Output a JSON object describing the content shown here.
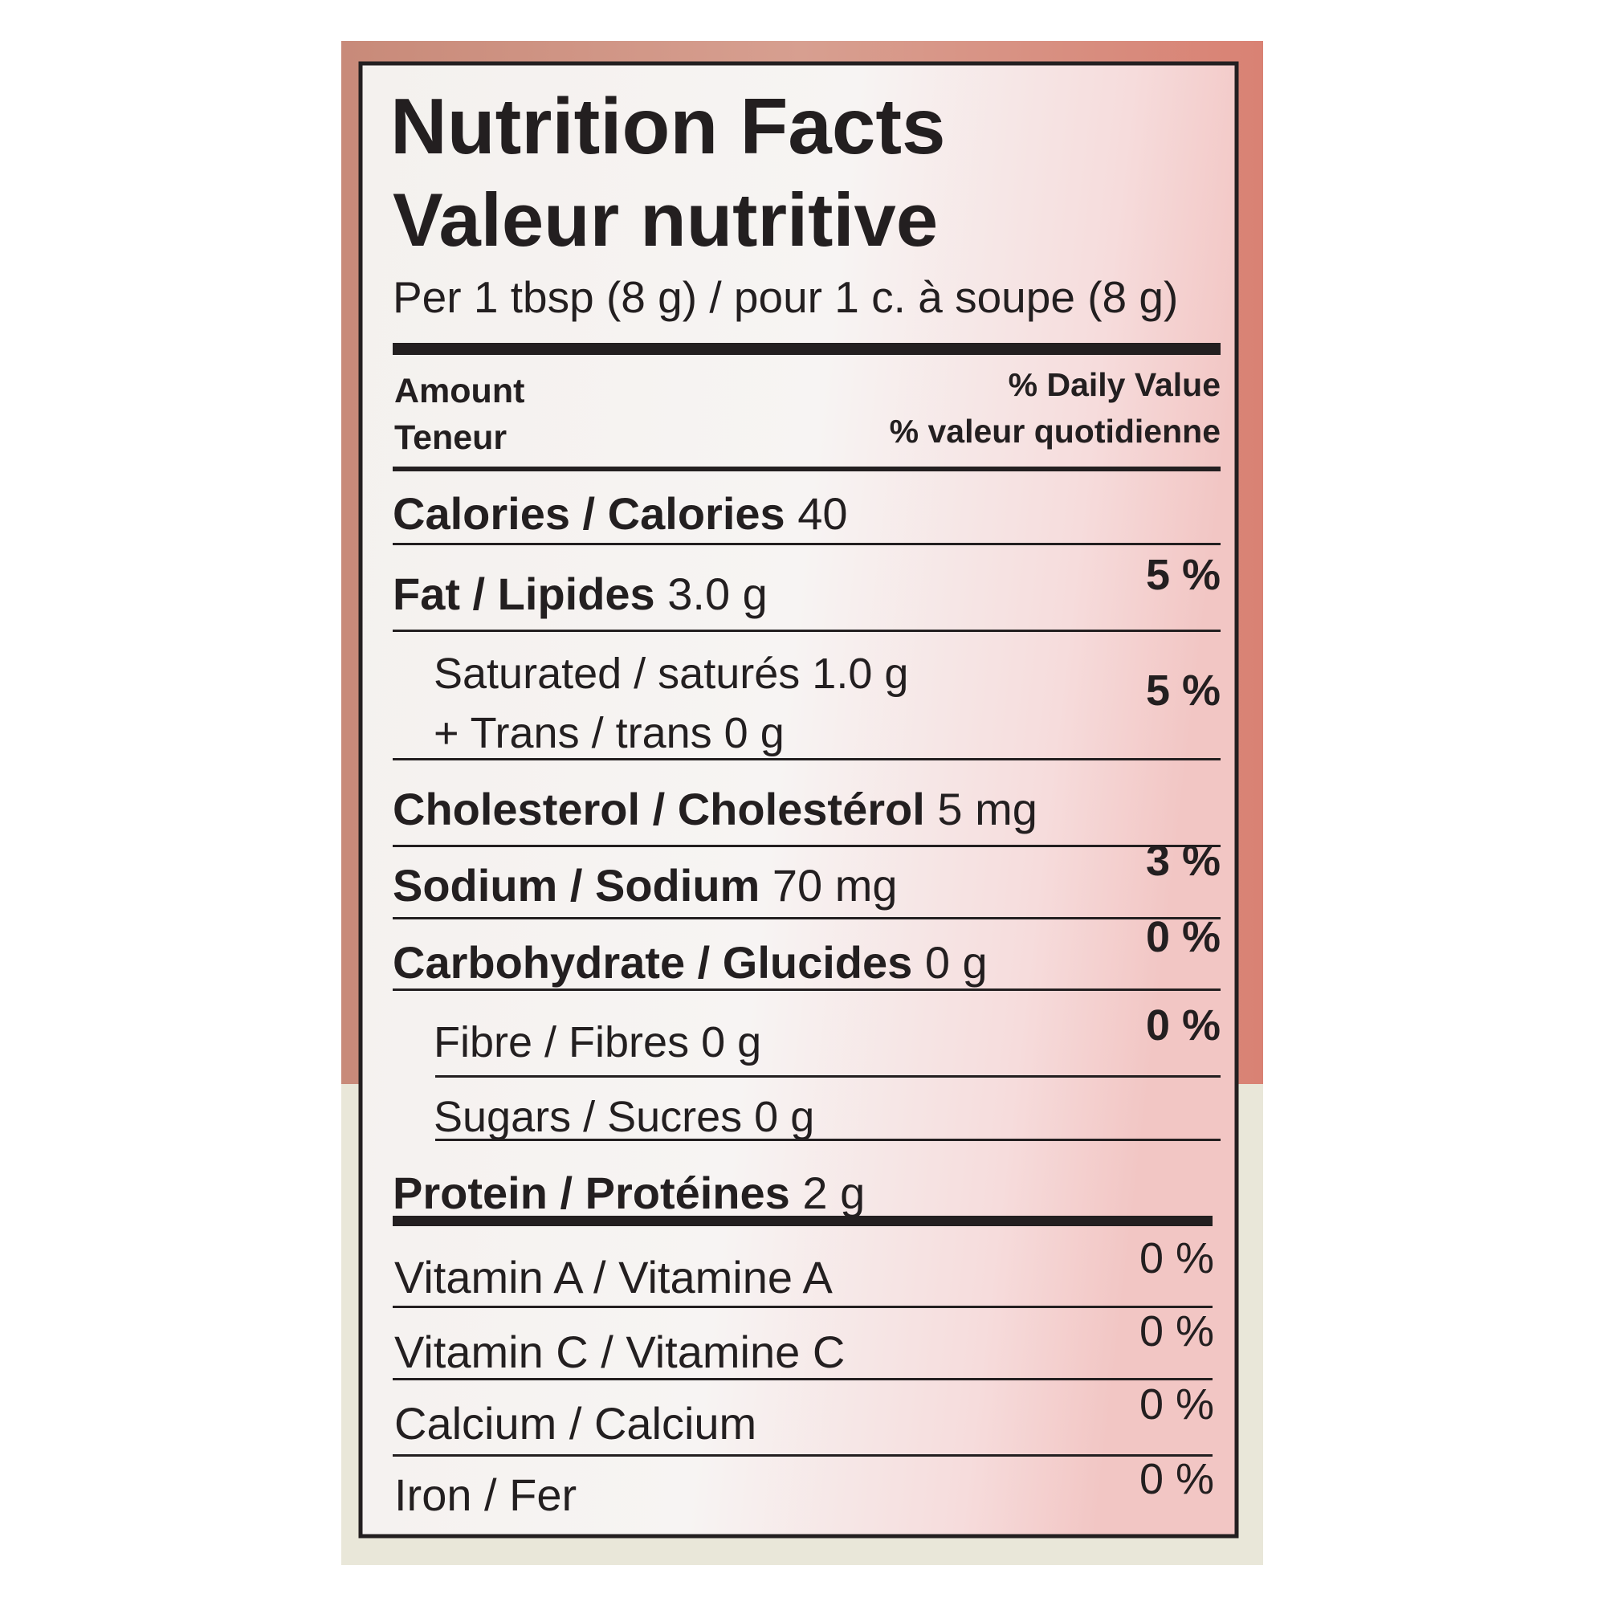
{
  "title": "Nutrition Facts",
  "title_fr": "Valeur nutritive",
  "serving": "Per 1 tbsp (8 g) / pour 1 c. à soupe (8 g)",
  "header": {
    "amount": "Amount",
    "amount_fr": "Teneur",
    "daily_value": "% Daily Value",
    "daily_value_fr": "% valeur quotidienne"
  },
  "nutrients": [
    {
      "label": "Calories / Calories",
      "amount": "40"
    },
    {
      "label": "Fat / Lipides",
      "amount": "3.0 g",
      "dv": "5 %",
      "subs": [
        {
          "label": "Saturated / saturés",
          "amount": "1.0 g",
          "label2": "+ Trans / trans 0 g",
          "dv": "5 %"
        }
      ]
    },
    {
      "label": "Cholesterol / Cholestérol",
      "amount": "5 mg"
    },
    {
      "label": "Sodium / Sodium",
      "amount": "70 mg",
      "dv": "3 %"
    },
    {
      "label": "Carbohydrate / Glucides",
      "amount": "0 g",
      "dv": "0 %",
      "subs": [
        {
          "label": "Fibre / Fibres 0 g",
          "dv": "0 %"
        },
        {
          "label": "Sugars / Sucres 0 g"
        }
      ]
    },
    {
      "label": "Protein / Protéines",
      "amount": "2 g"
    }
  ],
  "vitamins": [
    {
      "label": "Vitamin A / Vitamine A",
      "dv": "0 %"
    },
    {
      "label": "Vitamin C / Vitamine C",
      "dv": "0 %"
    },
    {
      "label": "Calcium / Calcium",
      "dv": "0 %"
    },
    {
      "label": "Iron / Fer",
      "dv": "0 %"
    }
  ]
}
